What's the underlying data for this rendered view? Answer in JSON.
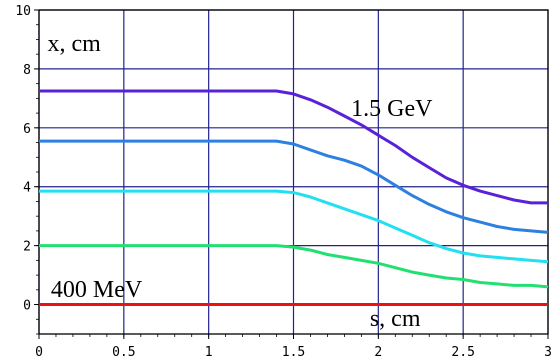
{
  "chart_data": {
    "type": "line",
    "x_range": [
      0,
      3
    ],
    "y_range": [
      -1,
      10
    ],
    "x_ticks": [
      "0",
      "0.5",
      "1",
      "1.5",
      "2",
      "2.5",
      "3"
    ],
    "x_tick_values": [
      0,
      0.5,
      1,
      1.5,
      2,
      2.5,
      3
    ],
    "y_ticks": [
      "0",
      "2",
      "4",
      "6",
      "8",
      "10"
    ],
    "y_tick_values": [
      0,
      2,
      4,
      6,
      8,
      10
    ],
    "grid": true,
    "annotations": [
      {
        "text": "x, cm",
        "x": 0.05,
        "y": 8.6
      },
      {
        "text": "1.5 GeV",
        "x": 1.84,
        "y": 6.4
      },
      {
        "text": "400 MeV",
        "x": 0.07,
        "y": 0.25
      },
      {
        "text": "s, cm",
        "x": 1.95,
        "y": -0.72
      }
    ],
    "series": [
      {
        "color": "#5a22d8",
        "x": [
          0,
          0.5,
          1.0,
          1.4,
          1.5,
          1.6,
          1.7,
          1.8,
          1.9,
          2.0,
          2.1,
          2.2,
          2.3,
          2.4,
          2.5,
          2.6,
          2.7,
          2.8,
          2.9,
          3.0
        ],
        "y": [
          7.25,
          7.25,
          7.25,
          7.25,
          7.15,
          6.95,
          6.7,
          6.4,
          6.1,
          5.75,
          5.4,
          5.0,
          4.65,
          4.3,
          4.05,
          3.85,
          3.7,
          3.55,
          3.45,
          3.45
        ]
      },
      {
        "color": "#2e80e0",
        "x": [
          0,
          0.5,
          1.0,
          1.4,
          1.5,
          1.6,
          1.7,
          1.8,
          1.9,
          2.0,
          2.1,
          2.2,
          2.3,
          2.4,
          2.5,
          2.6,
          2.7,
          2.8,
          2.9,
          3.0
        ],
        "y": [
          5.55,
          5.55,
          5.55,
          5.55,
          5.45,
          5.25,
          5.05,
          4.9,
          4.7,
          4.4,
          4.05,
          3.7,
          3.4,
          3.15,
          2.95,
          2.8,
          2.65,
          2.55,
          2.5,
          2.45
        ]
      },
      {
        "color": "#22e0f0",
        "x": [
          0,
          0.5,
          1.0,
          1.4,
          1.5,
          1.6,
          1.7,
          1.8,
          1.9,
          2.0,
          2.1,
          2.2,
          2.3,
          2.4,
          2.5,
          2.6,
          2.7,
          2.8,
          2.9,
          3.0
        ],
        "y": [
          3.85,
          3.85,
          3.85,
          3.85,
          3.8,
          3.65,
          3.45,
          3.25,
          3.05,
          2.85,
          2.6,
          2.35,
          2.1,
          1.9,
          1.75,
          1.65,
          1.6,
          1.55,
          1.5,
          1.45
        ]
      },
      {
        "color": "#22e070",
        "x": [
          0,
          0.5,
          1.0,
          1.4,
          1.5,
          1.6,
          1.7,
          1.8,
          1.9,
          2.0,
          2.1,
          2.2,
          2.3,
          2.4,
          2.5,
          2.6,
          2.7,
          2.8,
          2.9,
          3.0
        ],
        "y": [
          2.0,
          2.0,
          2.0,
          2.0,
          1.95,
          1.85,
          1.7,
          1.6,
          1.5,
          1.4,
          1.25,
          1.1,
          1.0,
          0.9,
          0.85,
          0.75,
          0.7,
          0.65,
          0.65,
          0.6
        ]
      },
      {
        "color": "#ee1111",
        "x": [
          0,
          3.0
        ],
        "y": [
          0,
          0
        ]
      }
    ]
  }
}
